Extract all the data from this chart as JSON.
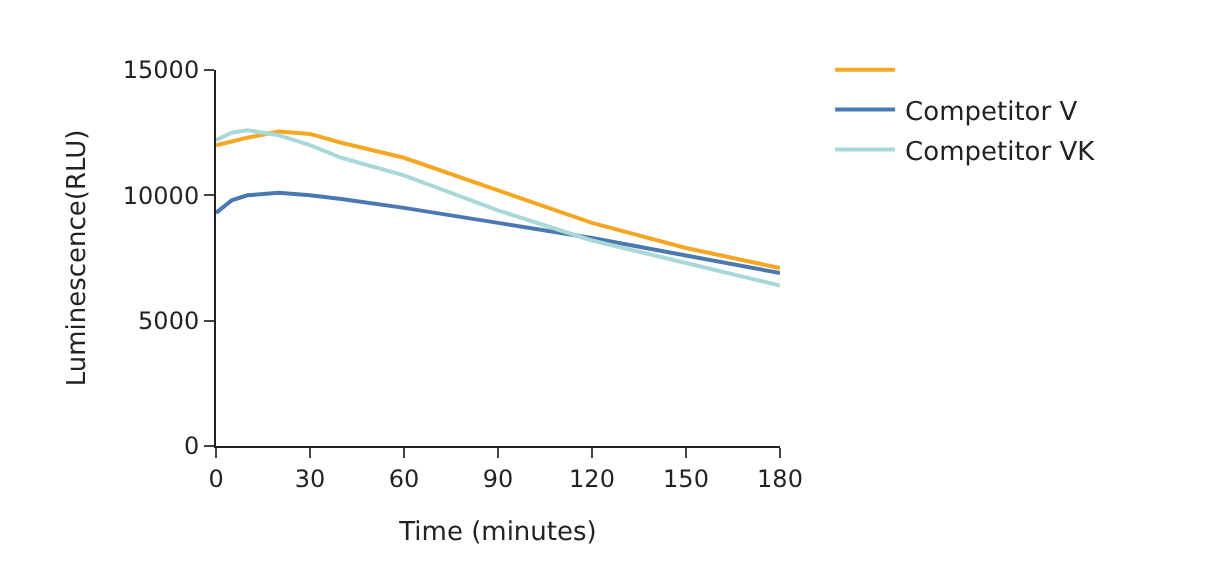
{
  "chart_data": {
    "type": "line",
    "xlabel": "Time (minutes)",
    "ylabel": "Luminescence(RLU)",
    "x": [
      0,
      5,
      10,
      20,
      30,
      40,
      60,
      90,
      120,
      150,
      180
    ],
    "series": [
      {
        "color": "#f5a623",
        "values": [
          12000,
          12150,
          12300,
          12550,
          12450,
          12100,
          11500,
          10200,
          8900,
          7900,
          7100
        ]
      },
      {
        "name": "Competitor V",
        "color": "#4a78b0",
        "values": [
          9300,
          9800,
          10000,
          10100,
          10000,
          9850,
          9500,
          8900,
          8300,
          7600,
          6900
        ]
      },
      {
        "name": "Competitor VK",
        "color": "#a8d8d8",
        "values": [
          12200,
          12500,
          12600,
          12400,
          12000,
          11500,
          10800,
          9400,
          8200,
          7300,
          6400
        ]
      }
    ],
    "xlim": [
      0,
      180
    ],
    "xticks": [
      0,
      30,
      60,
      90,
      120,
      150,
      180
    ],
    "ylim": [
      0,
      15000
    ],
    "yticks": [
      0,
      5000,
      10000,
      15000
    ],
    "legend": "top right",
    "marker": "none",
    "line_style": "solid"
  }
}
